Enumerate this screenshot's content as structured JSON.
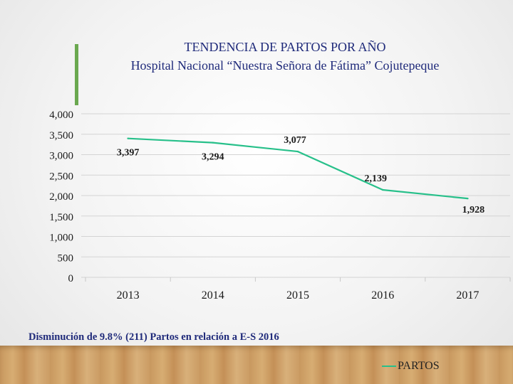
{
  "slide": {
    "title_line1": "TENDENCIA DE PARTOS POR AÑO",
    "title_line2": "Hospital Nacional “Nuestra Señora de Fátima” Cojutepeque",
    "note": "Disminución de 9.8% (211) Partos en relación a E-S 2016"
  },
  "colors": {
    "series": "#27c08a",
    "title": "#1f2a7a",
    "accent": "#6aa84f"
  },
  "chart_data": {
    "type": "line",
    "title": "TENDENCIA DE PARTOS POR AÑO",
    "subtitle": "Hospital Nacional “Nuestra Señora de Fátima” Cojutepeque",
    "categories": [
      "2013",
      "2014",
      "2015",
      "2016",
      "2017"
    ],
    "series": [
      {
        "name": "PARTOS",
        "values": [
          3397,
          3294,
          3077,
          2139,
          1928
        ],
        "labels": [
          "3,397",
          "3,294",
          "3,077",
          "2,139",
          "1,928"
        ]
      }
    ],
    "ylim": [
      0,
      4000
    ],
    "yticks": [
      "0",
      "500",
      "1,000",
      "1,500",
      "2,000",
      "2,500",
      "3,000",
      "3,500",
      "4,000"
    ],
    "grid": true,
    "legend": "bottom-right"
  }
}
